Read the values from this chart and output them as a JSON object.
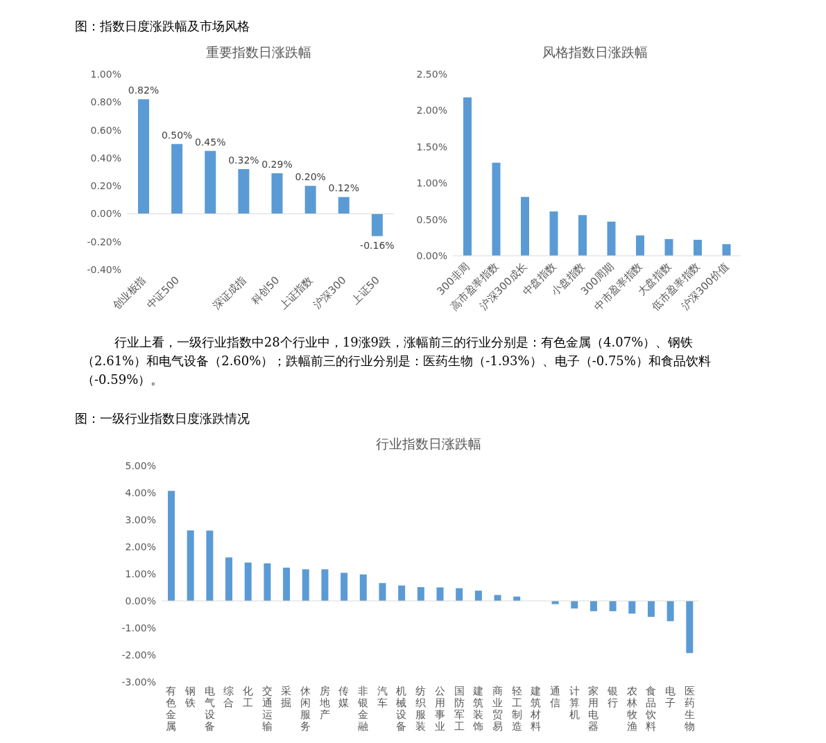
{
  "chart_data": [
    {
      "type": "bar",
      "title": "重要指数日涨跌幅",
      "annotations": [
        "图：指数日度涨跌幅及市场风格"
      ],
      "categories": [
        "创业板指",
        "中证500",
        null,
        "深证成指",
        "科创50",
        "上证指数",
        "沪深300",
        "上证50"
      ],
      "values": [
        0.82,
        0.5,
        0.45,
        0.32,
        0.29,
        0.2,
        0.12,
        -0.16
      ],
      "value_labels": [
        "0.82%",
        "0.50%",
        "0.45%",
        "0.32%",
        "0.29%",
        "0.20%",
        "0.12%",
        "-0.16%"
      ],
      "color": "#5b9bd5",
      "ylim": [
        -0.4,
        1.0
      ],
      "yticks": [
        {
          "value": -0.4,
          "label": "-0.40%"
        },
        {
          "value": -0.2,
          "label": "-0.20%"
        },
        {
          "value": 0,
          "label": "0.00%"
        },
        {
          "value": 0.2,
          "label": "0.20%"
        },
        {
          "value": 0.4,
          "label": "0.40%"
        },
        {
          "value": 0.6,
          "label": "0.60%"
        },
        {
          "value": 0.8,
          "label": "0.80%"
        },
        {
          "value": 1.0,
          "label": "1.00%"
        }
      ],
      "ref_lines": [
        {
          "axis": "y",
          "value": 0,
          "color": "#d9d9d9"
        }
      ],
      "grid": false,
      "legend": false
    },
    {
      "type": "bar",
      "title": "风格指数日涨跌幅",
      "categories": [
        "300非周",
        "高市盈率指数",
        "沪深300成长",
        "中盘指数",
        "小盘指数",
        "300周期",
        "中市盈率指数",
        "大盘指数",
        "低市盈率指数",
        "沪深300价值"
      ],
      "values": [
        2.18,
        1.28,
        0.81,
        0.61,
        0.56,
        0.47,
        0.28,
        0.23,
        0.22,
        0.16
      ],
      "color": "#5b9bd5",
      "ylim": [
        0,
        2.5
      ],
      "yticks": [
        {
          "value": 0,
          "label": "0.00%"
        },
        {
          "value": 0.5,
          "label": "0.50%"
        },
        {
          "value": 1.0,
          "label": "1.00%"
        },
        {
          "value": 1.5,
          "label": "1.50%"
        },
        {
          "value": 2.0,
          "label": "2.00%"
        },
        {
          "value": 2.5,
          "label": "2.50%"
        }
      ],
      "grid": false,
      "legend": false
    },
    {
      "type": "bar",
      "title": "行业指数日涨跌幅",
      "annotations": [
        "行业上看，一级行业指数中28个行业中，19涨9跌，涨幅前三的行业分别是：有色金属（4.07%）、钢铁（2.61%）和电气设备（2.60%）；跌幅前三的行业分别是：医药生物（-1.93%）、电子（-0.75%）和食品饮料（-0.59%）。",
        "图：一级行业指数日度涨跌情况"
      ],
      "categories": [
        "有色金属",
        "钢铁",
        "电气设备",
        "综合",
        "化工",
        "交通运输",
        "采掘",
        "休闲服务",
        "房地产",
        "传媒",
        "非银金融",
        "汽车",
        "机械设备",
        "纺织服装",
        "公用事业",
        "国防军工",
        "建筑装饰",
        "商业贸易",
        "轻工制造",
        "建筑材料",
        "通信",
        "计算机",
        "家用电器",
        "银行",
        "农林牧渔",
        "食品饮料",
        "电子",
        "医药生物"
      ],
      "values": [
        4.07,
        2.61,
        2.6,
        1.61,
        1.42,
        1.39,
        1.23,
        1.17,
        1.17,
        1.04,
        0.98,
        0.66,
        0.57,
        0.51,
        0.5,
        0.47,
        0.38,
        0.22,
        0.16,
        null,
        -0.12,
        -0.28,
        -0.38,
        -0.38,
        -0.47,
        -0.59,
        -0.75,
        -1.93
      ],
      "color": "#5b9bd5",
      "ylim": [
        -3,
        5
      ],
      "yticks": [
        {
          "value": -3,
          "label": "-3.00%"
        },
        {
          "value": -2,
          "label": "-2.00%"
        },
        {
          "value": -1,
          "label": "-1.00%"
        },
        {
          "value": 0,
          "label": "0.00%"
        },
        {
          "value": 1,
          "label": "1.00%"
        },
        {
          "value": 2,
          "label": "2.00%"
        },
        {
          "value": 3,
          "label": "3.00%"
        },
        {
          "value": 4,
          "label": "4.00%"
        },
        {
          "value": 5,
          "label": "5.00%"
        }
      ],
      "ref_lines": [
        {
          "axis": "y",
          "value": 0,
          "color": "#d9d9d9"
        }
      ],
      "grid": false,
      "legend": false
    }
  ]
}
